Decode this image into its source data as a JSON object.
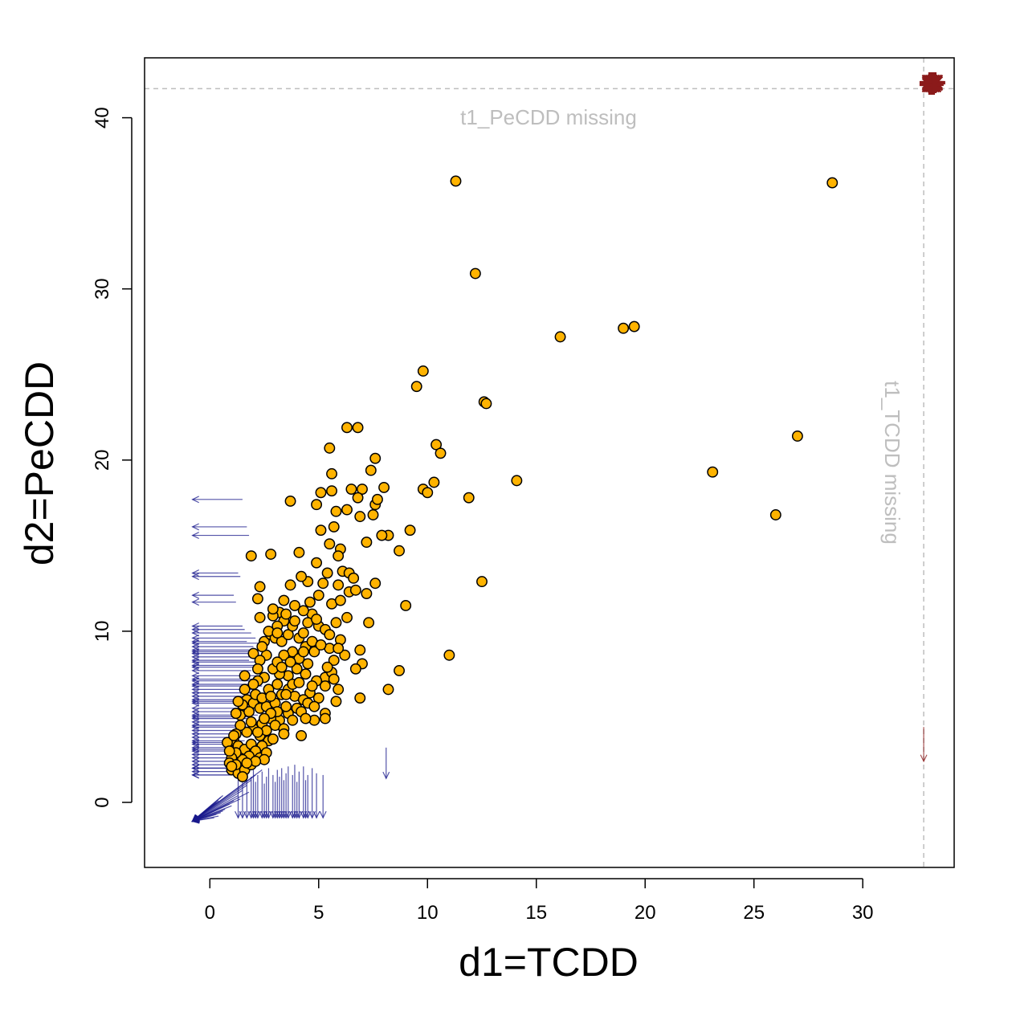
{
  "chart_data": {
    "type": "scatter",
    "xlabel": "d1=TCDD",
    "ylabel": "d2=PeCDD",
    "xlim": [
      -3,
      34.2
    ],
    "ylim": [
      -3.8,
      43.5
    ],
    "x_ticks": [
      0,
      5,
      10,
      15,
      20,
      25,
      30
    ],
    "y_ticks": [
      0,
      10,
      20,
      30,
      40
    ],
    "grid": false,
    "colors": {
      "observed_fill": "#FFB300",
      "observed_edge": "#000000",
      "censored": "#1A1A8C",
      "missing": "#8B1A1A",
      "missing_line": "#BEBEBE"
    },
    "missing_lines": {
      "x": 32.8,
      "y": 41.7,
      "x_label": "t1_TCDD missing",
      "y_label": "t1_PeCDD missing"
    },
    "observed_points": [
      [
        11.3,
        36.3
      ],
      [
        28.6,
        36.2
      ],
      [
        12.2,
        30.9
      ],
      [
        16.1,
        27.2
      ],
      [
        19.0,
        27.7
      ],
      [
        19.5,
        27.8
      ],
      [
        9.8,
        25.2
      ],
      [
        9.5,
        24.3
      ],
      [
        12.6,
        23.4
      ],
      [
        12.7,
        23.3
      ],
      [
        27.0,
        21.4
      ],
      [
        23.1,
        19.3
      ],
      [
        26.0,
        16.8
      ],
      [
        14.1,
        18.8
      ],
      [
        10.4,
        20.9
      ],
      [
        10.6,
        20.4
      ],
      [
        10.3,
        18.7
      ],
      [
        9.8,
        18.3
      ],
      [
        10.0,
        18.1
      ],
      [
        11.9,
        17.8
      ],
      [
        12.5,
        12.9
      ],
      [
        11.0,
        8.6
      ],
      [
        9.0,
        11.5
      ],
      [
        9.2,
        15.9
      ],
      [
        8.7,
        14.7
      ],
      [
        8.2,
        15.6
      ],
      [
        7.9,
        15.6
      ],
      [
        8.0,
        18.4
      ],
      [
        7.6,
        20.1
      ],
      [
        7.4,
        19.4
      ],
      [
        6.8,
        21.9
      ],
      [
        6.3,
        21.9
      ],
      [
        5.5,
        20.7
      ],
      [
        5.6,
        19.2
      ],
      [
        5.6,
        18.2
      ],
      [
        6.5,
        18.3
      ],
      [
        7.0,
        18.3
      ],
      [
        6.8,
        17.8
      ],
      [
        7.5,
        16.8
      ],
      [
        7.6,
        17.4
      ],
      [
        7.7,
        17.7
      ],
      [
        6.3,
        17.1
      ],
      [
        5.8,
        17.0
      ],
      [
        5.1,
        18.1
      ],
      [
        4.9,
        17.4
      ],
      [
        3.7,
        17.6
      ],
      [
        5.7,
        16.1
      ],
      [
        5.1,
        15.9
      ],
      [
        7.2,
        15.2
      ],
      [
        6.9,
        16.7
      ],
      [
        6.0,
        14.8
      ],
      [
        5.5,
        15.1
      ],
      [
        5.9,
        14.4
      ],
      [
        4.9,
        14.0
      ],
      [
        4.1,
        14.6
      ],
      [
        2.8,
        14.5
      ],
      [
        1.9,
        14.4
      ],
      [
        5.2,
        12.8
      ],
      [
        6.1,
        13.5
      ],
      [
        6.4,
        13.4
      ],
      [
        6.6,
        13.1
      ],
      [
        7.2,
        12.2
      ],
      [
        7.6,
        12.8
      ],
      [
        7.3,
        10.5
      ],
      [
        6.9,
        8.9
      ],
      [
        7.0,
        8.1
      ],
      [
        6.7,
        7.8
      ],
      [
        8.7,
        7.7
      ],
      [
        8.2,
        6.6
      ],
      [
        6.9,
        6.1
      ],
      [
        5.8,
        5.9
      ],
      [
        5.9,
        6.6
      ],
      [
        5.3,
        5.2
      ],
      [
        5.3,
        4.9
      ],
      [
        4.8,
        4.8
      ],
      [
        4.2,
        3.9
      ],
      [
        4.6,
        6.4
      ],
      [
        5.3,
        7.3
      ],
      [
        5.7,
        8.3
      ],
      [
        6.0,
        9.5
      ],
      [
        5.5,
        9.0
      ],
      [
        5.0,
        10.3
      ],
      [
        4.7,
        11.0
      ],
      [
        4.3,
        11.2
      ],
      [
        3.9,
        11.5
      ],
      [
        3.7,
        12.7
      ],
      [
        3.4,
        11.8
      ],
      [
        3.2,
        11.1
      ],
      [
        2.9,
        10.9
      ],
      [
        2.3,
        12.6
      ],
      [
        2.2,
        11.9
      ],
      [
        2.3,
        10.8
      ],
      [
        2.5,
        9.4
      ],
      [
        2.0,
        8.7
      ],
      [
        2.8,
        9.8
      ],
      [
        3.0,
        9.6
      ],
      [
        3.3,
        9.4
      ],
      [
        3.6,
        9.8
      ],
      [
        4.1,
        9.6
      ],
      [
        4.4,
        9.1
      ],
      [
        4.8,
        8.8
      ],
      [
        4.5,
        8.1
      ],
      [
        4.0,
        7.8
      ],
      [
        3.6,
        7.4
      ],
      [
        3.2,
        7.5
      ],
      [
        2.9,
        7.8
      ],
      [
        2.5,
        7.3
      ],
      [
        2.2,
        7.1
      ],
      [
        2.0,
        6.9
      ],
      [
        1.6,
        6.6
      ],
      [
        1.7,
        6.0
      ],
      [
        2.0,
        5.8
      ],
      [
        2.3,
        5.5
      ],
      [
        2.6,
        5.6
      ],
      [
        3.0,
        5.8
      ],
      [
        3.3,
        6.3
      ],
      [
        3.6,
        6.6
      ],
      [
        3.9,
        6.2
      ],
      [
        4.3,
        6.0
      ],
      [
        4.0,
        5.5
      ],
      [
        3.6,
        5.2
      ],
      [
        3.2,
        4.8
      ],
      [
        2.8,
        4.9
      ],
      [
        2.4,
        4.6
      ],
      [
        2.0,
        4.3
      ],
      [
        1.7,
        4.1
      ],
      [
        1.4,
        4.5
      ],
      [
        1.2,
        4.0
      ],
      [
        1.1,
        3.6
      ],
      [
        1.3,
        3.3
      ],
      [
        1.6,
        3.1
      ],
      [
        1.9,
        3.4
      ],
      [
        2.3,
        3.9
      ],
      [
        2.6,
        4.2
      ],
      [
        3.0,
        4.5
      ],
      [
        3.4,
        4.3
      ],
      [
        2.7,
        3.6
      ],
      [
        2.4,
        3.3
      ],
      [
        2.1,
        3.0
      ],
      [
        1.8,
        2.7
      ],
      [
        1.5,
        2.5
      ],
      [
        1.2,
        2.9
      ],
      [
        1.0,
        2.6
      ],
      [
        0.9,
        2.3
      ],
      [
        1.0,
        1.9
      ],
      [
        1.3,
        1.7
      ],
      [
        1.6,
        1.9
      ],
      [
        1.9,
        2.2
      ],
      [
        2.3,
        2.6
      ],
      [
        2.6,
        2.9
      ],
      [
        1.5,
        1.5
      ],
      [
        0.8,
        3.5
      ],
      [
        0.9,
        3.0
      ],
      [
        1.1,
        3.9
      ],
      [
        1.4,
        5.1
      ],
      [
        1.6,
        7.4
      ],
      [
        4.5,
        10.5
      ],
      [
        4.9,
        10.7
      ],
      [
        5.3,
        10.1
      ],
      [
        5.6,
        11.6
      ],
      [
        6.0,
        11.8
      ],
      [
        6.4,
        12.3
      ],
      [
        6.7,
        12.4
      ],
      [
        5.9,
        12.7
      ],
      [
        5.4,
        13.4
      ],
      [
        4.5,
        12.9
      ],
      [
        4.2,
        13.2
      ],
      [
        5.0,
        12.1
      ],
      [
        4.6,
        11.7
      ],
      [
        3.8,
        10.3
      ],
      [
        3.4,
        10.6
      ],
      [
        3.1,
        10.3
      ],
      [
        2.7,
        10.0
      ],
      [
        3.8,
        8.8
      ],
      [
        3.4,
        8.6
      ],
      [
        3.1,
        8.2
      ],
      [
        2.6,
        8.6
      ],
      [
        2.3,
        8.3
      ],
      [
        4.1,
        8.4
      ],
      [
        4.4,
        7.5
      ],
      [
        4.9,
        7.1
      ],
      [
        5.3,
        6.8
      ],
      [
        5.6,
        7.6
      ],
      [
        6.2,
        8.6
      ],
      [
        6.3,
        10.8
      ],
      [
        5.8,
        10.5
      ],
      [
        5.5,
        9.8
      ],
      [
        4.3,
        9.9
      ],
      [
        3.9,
        10.6
      ],
      [
        3.5,
        11.0
      ],
      [
        2.9,
        11.3
      ],
      [
        3.1,
        9.9
      ],
      [
        2.4,
        9.1
      ],
      [
        2.2,
        7.8
      ],
      [
        2.7,
        6.6
      ],
      [
        3.1,
        6.9
      ],
      [
        3.5,
        6.3
      ],
      [
        3.8,
        6.9
      ],
      [
        4.1,
        7.0
      ],
      [
        4.7,
        6.8
      ],
      [
        5.0,
        6.1
      ],
      [
        4.5,
        5.8
      ],
      [
        4.2,
        5.3
      ],
      [
        3.8,
        4.8
      ],
      [
        3.5,
        5.6
      ],
      [
        3.1,
        5.3
      ],
      [
        2.8,
        5.2
      ],
      [
        2.5,
        4.9
      ],
      [
        2.2,
        4.1
      ],
      [
        1.8,
        5.3
      ],
      [
        1.5,
        5.7
      ],
      [
        1.3,
        5.9
      ],
      [
        1.2,
        5.2
      ],
      [
        1.9,
        4.7
      ],
      [
        2.1,
        6.3
      ],
      [
        2.4,
        6.1
      ],
      [
        2.8,
        6.2
      ],
      [
        3.3,
        7.9
      ],
      [
        3.7,
        8.2
      ],
      [
        4.3,
        8.8
      ],
      [
        4.7,
        9.4
      ],
      [
        5.1,
        9.2
      ],
      [
        5.9,
        9.0
      ],
      [
        5.7,
        7.2
      ],
      [
        5.4,
        7.9
      ],
      [
        4.8,
        5.6
      ],
      [
        4.4,
        4.9
      ],
      [
        3.4,
        4.0
      ],
      [
        2.9,
        3.7
      ],
      [
        2.5,
        2.5
      ],
      [
        2.1,
        2.4
      ],
      [
        1.7,
        2.3
      ],
      [
        1.2,
        2.2
      ],
      [
        1.0,
        2.1
      ]
    ],
    "censored_left": [
      [
        1.5,
        17.7
      ],
      [
        1.7,
        16.1
      ],
      [
        1.8,
        15.6
      ],
      [
        1.3,
        13.4
      ],
      [
        1.4,
        13.2
      ],
      [
        1.1,
        12.1
      ],
      [
        1.2,
        11.7
      ],
      [
        1.5,
        10.3
      ],
      [
        1.6,
        10.1
      ],
      [
        1.9,
        9.9
      ],
      [
        2.1,
        9.6
      ],
      [
        2.2,
        9.3
      ],
      [
        2.0,
        9.1
      ],
      [
        2.3,
        8.9
      ],
      [
        2.0,
        8.7
      ],
      [
        2.2,
        8.5
      ],
      [
        1.8,
        8.3
      ],
      [
        2.1,
        8.2
      ],
      [
        2.2,
        8.0
      ],
      [
        1.9,
        7.7
      ],
      [
        2.3,
        7.4
      ],
      [
        2.1,
        7.1
      ],
      [
        2.4,
        6.8
      ],
      [
        2.0,
        6.6
      ],
      [
        2.3,
        6.4
      ],
      [
        2.1,
        6.2
      ],
      [
        2.2,
        6.0
      ],
      [
        1.9,
        5.8
      ],
      [
        2.0,
        5.5
      ],
      [
        1.8,
        5.3
      ],
      [
        2.2,
        5.1
      ],
      [
        1.7,
        4.9
      ],
      [
        1.6,
        4.7
      ],
      [
        1.9,
        4.4
      ],
      [
        1.5,
        4.2
      ],
      [
        1.8,
        4.0
      ],
      [
        1.4,
        3.8
      ],
      [
        1.6,
        3.6
      ],
      [
        1.3,
        3.4
      ],
      [
        1.5,
        3.2
      ],
      [
        1.2,
        3.0
      ],
      [
        1.3,
        2.8
      ],
      [
        1.0,
        2.6
      ],
      [
        1.1,
        2.4
      ],
      [
        0.9,
        2.2
      ],
      [
        0.9,
        2.0
      ],
      [
        0.8,
        1.8
      ],
      [
        0.9,
        1.6
      ],
      [
        1.7,
        9.4
      ],
      [
        1.9,
        8.8
      ],
      [
        2.2,
        7.9
      ],
      [
        2.4,
        7.2
      ],
      [
        1.8,
        6.9
      ],
      [
        1.6,
        5.9
      ],
      [
        1.9,
        5.0
      ],
      [
        1.3,
        4.5
      ],
      [
        1.4,
        3.5
      ],
      [
        1.1,
        3.1
      ],
      [
        1.0,
        2.0
      ],
      [
        1.0,
        1.6
      ]
    ],
    "censored_both": [
      [
        0.6,
        0.4
      ],
      [
        0.5,
        0.3
      ],
      [
        0.4,
        0.1
      ],
      [
        0.3,
        0.0
      ],
      [
        0.2,
        -0.1
      ],
      [
        0.1,
        -0.2
      ],
      [
        0.0,
        -0.3
      ],
      [
        -0.1,
        -0.4
      ],
      [
        -0.2,
        -0.5
      ],
      [
        0.3,
        -0.7
      ],
      [
        0.5,
        -0.6
      ],
      [
        0.7,
        -0.4
      ],
      [
        0.9,
        -0.1
      ],
      [
        1.1,
        0.1
      ],
      [
        1.3,
        0.4
      ],
      [
        1.5,
        0.7
      ],
      [
        1.7,
        1.0
      ],
      [
        1.9,
        1.3
      ],
      [
        2.1,
        1.6
      ],
      [
        2.4,
        1.9
      ],
      [
        1.8,
        0.6
      ],
      [
        1.4,
        0.2
      ],
      [
        1.0,
        -0.2
      ],
      [
        0.6,
        -0.5
      ],
      [
        0.4,
        -0.8
      ],
      [
        0.2,
        -0.9
      ]
    ],
    "censored_down": [
      [
        1.3,
        1.6
      ],
      [
        1.5,
        1.3
      ],
      [
        1.7,
        1.7
      ],
      [
        1.9,
        1.5
      ],
      [
        2.0,
        1.9
      ],
      [
        2.2,
        1.6
      ],
      [
        2.4,
        1.8
      ],
      [
        2.6,
        1.5
      ],
      [
        2.7,
        2.0
      ],
      [
        2.9,
        1.6
      ],
      [
        3.1,
        1.9
      ],
      [
        3.2,
        1.5
      ],
      [
        3.3,
        2.0
      ],
      [
        3.5,
        1.7
      ],
      [
        3.6,
        2.1
      ],
      [
        3.8,
        1.6
      ],
      [
        3.9,
        2.2
      ],
      [
        4.1,
        1.8
      ],
      [
        4.3,
        2.1
      ],
      [
        4.5,
        1.6
      ],
      [
        4.7,
        2.0
      ],
      [
        4.9,
        1.7
      ],
      [
        5.2,
        1.6
      ],
      [
        2.1,
        1.2
      ],
      [
        2.5,
        1.1
      ],
      [
        3.0,
        1.2
      ],
      [
        3.4,
        1.3
      ],
      [
        4.0,
        1.2
      ],
      [
        4.4,
        1.3
      ],
      [
        8.1,
        3.2
      ]
    ],
    "missing_down": [
      [
        32.8,
        4.4
      ]
    ]
  }
}
